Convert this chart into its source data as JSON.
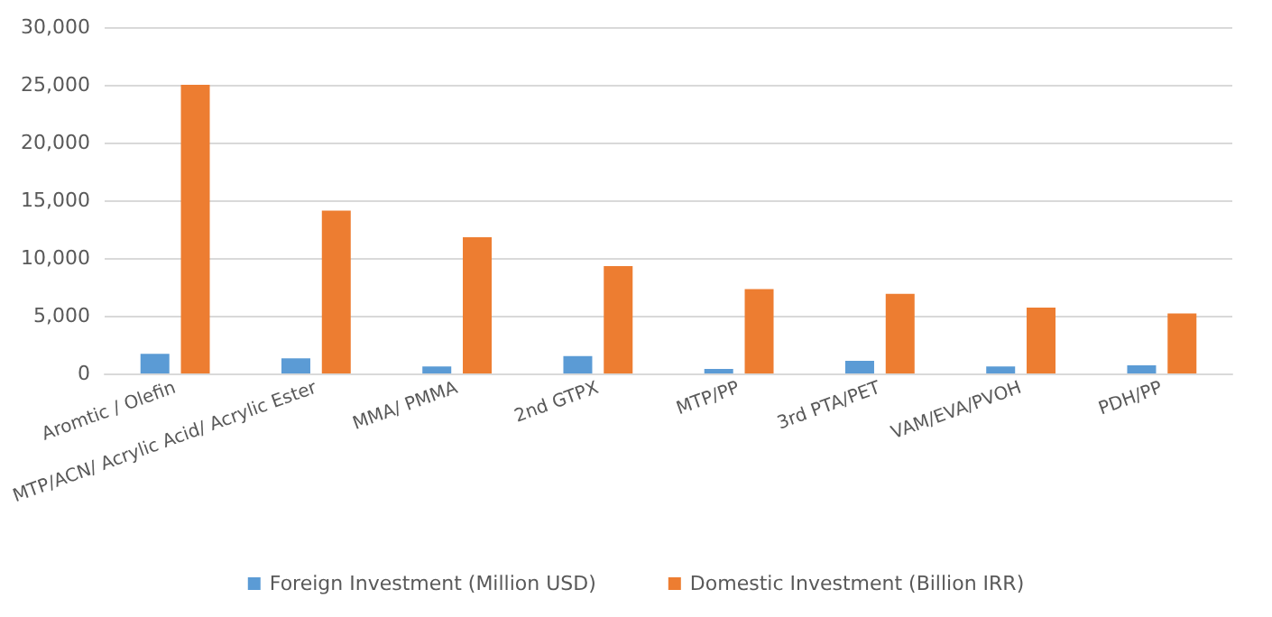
{
  "chart_data": {
    "type": "bar",
    "categories": [
      "Aromtic / Olefin",
      "MTP/ACN/ Acrylic Acid/ Acrylic Ester",
      "MMA/ PMMA",
      "2nd GTPX",
      "MTP/PP",
      "3rd PTA/PET",
      "VAM/EVA/PVOH",
      "PDH/PP"
    ],
    "series": [
      {
        "name": "Foreign Investment (Million USD)",
        "color": "#5b9bd5",
        "values": [
          1700,
          1300,
          600,
          1500,
          400,
          1100,
          600,
          700
        ]
      },
      {
        "name": "Domestic Investment (Billion IRR)",
        "color": "#ed7d31",
        "values": [
          25000,
          14100,
          11800,
          9300,
          7300,
          6900,
          5700,
          5200
        ]
      }
    ],
    "ylim": [
      0,
      30000
    ],
    "yticks": [
      0,
      {
        "value": 5000,
        "label": "5,000"
      },
      {
        "value": 10000,
        "label": "10,000"
      },
      {
        "value": 15000,
        "label": "15,000"
      },
      {
        "value": 20000,
        "label": "20,000"
      },
      {
        "value": 25000,
        "label": "25,000"
      },
      {
        "value": 30000,
        "label": "30,000"
      }
    ],
    "grid": "y",
    "legend": "bottom"
  }
}
